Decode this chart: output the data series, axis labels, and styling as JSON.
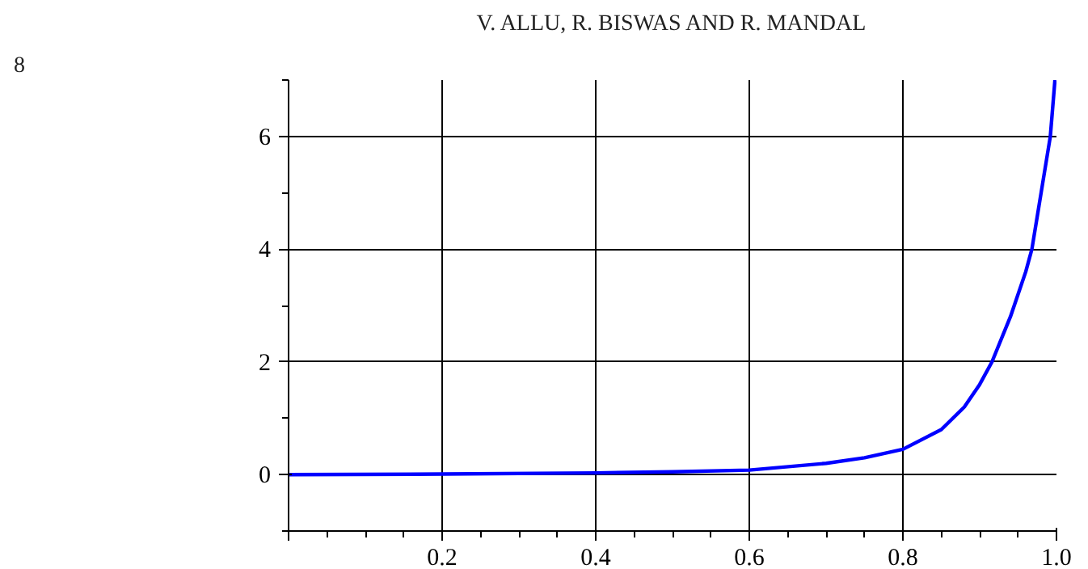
{
  "chart_data": {
    "type": "line",
    "annotations": [
      "8",
      "V. ALLU, R. BISWAS AND R. MANDAL"
    ],
    "x": [
      0,
      0.2,
      0.4,
      0.5,
      0.6,
      0.7,
      0.75,
      0.8,
      0.85,
      0.88,
      0.9,
      0.916,
      0.94,
      0.96,
      0.968,
      0.98,
      0.992,
      0.998
    ],
    "series": [
      {
        "color": "#0000ff",
        "values": [
          0,
          0.01,
          0.03,
          0.05,
          0.08,
          0.2,
          0.3,
          0.45,
          0.8,
          1.2,
          1.6,
          2,
          2.8,
          3.6,
          4,
          5,
          6,
          7
        ]
      }
    ],
    "xlim": [
      0,
      1.0
    ],
    "ylim": [
      -1,
      7
    ],
    "xticks": [
      {
        "value": 0,
        "label": null
      },
      0.2,
      0.4,
      0.6,
      0.8,
      {
        "value": 1.0,
        "label": "1.0"
      }
    ],
    "yticks": [
      0,
      2,
      4,
      6
    ],
    "grid": true,
    "marker": "none",
    "line_style": "solid"
  }
}
